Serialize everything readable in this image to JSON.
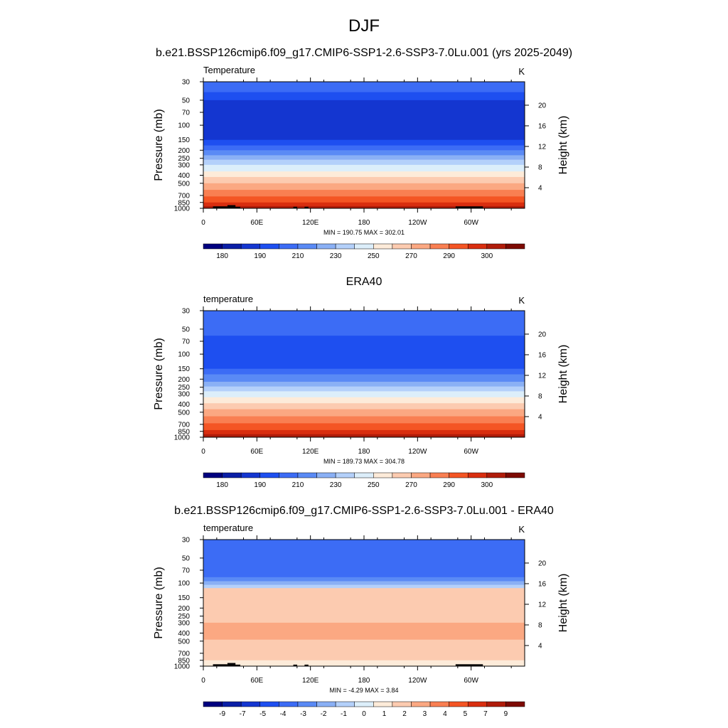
{
  "figure": {
    "title": "DJF"
  },
  "colors": {
    "temperature_palette": [
      "#00007f",
      "#0a1fa6",
      "#1436d0",
      "#1e4ff0",
      "#3c6cf5",
      "#5a8af5",
      "#8ab0f5",
      "#b4d0fa",
      "#dceefa",
      "#fdebd9",
      "#fccbb0",
      "#fba882",
      "#f97f52",
      "#f45524",
      "#d92e0f",
      "#b01c0a",
      "#7d0a03"
    ],
    "difference_palette": [
      "#00007f",
      "#0a1fa6",
      "#1436d0",
      "#1e4ff0",
      "#3c6cf5",
      "#5a8af5",
      "#8ab0f5",
      "#b4d0fa",
      "#dceefa",
      "#fdebd9",
      "#fccbb0",
      "#fba882",
      "#f97f52",
      "#f45524",
      "#d92e0f",
      "#b01c0a",
      "#7d0a03"
    ],
    "topography": "#000000"
  },
  "chart_data": [
    {
      "type": "heatmap",
      "title": "b.e21.BSSP126cmip6.f09_g17.CMIP6-SSP1-2.6-SSP3-7.0Lu.001 (yrs 2025-2049)",
      "left_label": "Temperature",
      "units": "K",
      "ylabel": "Pressure (mb)",
      "ylabel_right": "Height (km)",
      "x_ticks": [
        "0",
        "60E",
        "120E",
        "180",
        "120W",
        "60W"
      ],
      "y_ticks": [
        "30",
        "50",
        "70",
        "100",
        "150",
        "200",
        "250",
        "300",
        "400",
        "500",
        "700",
        "850",
        "1000"
      ],
      "y_ticks_right": [
        "4",
        "8",
        "12",
        "16",
        "20"
      ],
      "stats": "MIN = 190.75  MAX = 302.01",
      "colorbar_labels": [
        "180",
        "190",
        "210",
        "230",
        "250",
        "270",
        "290",
        "300"
      ],
      "levels": [
        {
          "p": 30,
          "bin": 4
        },
        {
          "p": 40,
          "bin": 3
        },
        {
          "p": 50,
          "bin": 2
        },
        {
          "p": 150,
          "bin": 3
        },
        {
          "p": 175,
          "bin": 4
        },
        {
          "p": 200,
          "bin": 5
        },
        {
          "p": 230,
          "bin": 6
        },
        {
          "p": 260,
          "bin": 7
        },
        {
          "p": 300,
          "bin": 8
        },
        {
          "p": 360,
          "bin": 9
        },
        {
          "p": 420,
          "bin": 10
        },
        {
          "p": 500,
          "bin": 11
        },
        {
          "p": 600,
          "bin": 12
        },
        {
          "p": 720,
          "bin": 13
        },
        {
          "p": 850,
          "bin": 14
        },
        {
          "p": 940,
          "bin": 15
        },
        {
          "p": 1000,
          "bin": 15
        }
      ],
      "topography": true
    },
    {
      "type": "heatmap",
      "title": "ERA40",
      "left_label": "temperature",
      "units": "K",
      "ylabel": "Pressure (mb)",
      "ylabel_right": "Height (km)",
      "x_ticks": [
        "0",
        "60E",
        "120E",
        "180",
        "120W",
        "60W"
      ],
      "y_ticks": [
        "30",
        "50",
        "70",
        "100",
        "150",
        "200",
        "250",
        "300",
        "400",
        "500",
        "700",
        "850",
        "1000"
      ],
      "y_ticks_right": [
        "4",
        "8",
        "12",
        "16",
        "20"
      ],
      "stats": "MIN = 189.73  MAX = 304.78",
      "colorbar_labels": [
        "180",
        "190",
        "210",
        "230",
        "250",
        "270",
        "290",
        "300"
      ],
      "levels": [
        {
          "p": 30,
          "bin": 4
        },
        {
          "p": 60,
          "bin": 3
        },
        {
          "p": 150,
          "bin": 4
        },
        {
          "p": 175,
          "bin": 5
        },
        {
          "p": 215,
          "bin": 6
        },
        {
          "p": 245,
          "bin": 7
        },
        {
          "p": 280,
          "bin": 8
        },
        {
          "p": 330,
          "bin": 9
        },
        {
          "p": 390,
          "bin": 10
        },
        {
          "p": 460,
          "bin": 11
        },
        {
          "p": 560,
          "bin": 12
        },
        {
          "p": 680,
          "bin": 13
        },
        {
          "p": 820,
          "bin": 14
        },
        {
          "p": 920,
          "bin": 15
        },
        {
          "p": 1000,
          "bin": 15
        }
      ],
      "topography": false
    },
    {
      "type": "heatmap",
      "title": "b.e21.BSSP126cmip6.f09_g17.CMIP6-SSP1-2.6-SSP3-7.0Lu.001 - ERA40",
      "left_label": "temperature",
      "units": "K",
      "ylabel": "Pressure (mb)",
      "ylabel_right": "Height (km)",
      "x_ticks": [
        "0",
        "60E",
        "120E",
        "180",
        "120W",
        "60W"
      ],
      "y_ticks": [
        "30",
        "50",
        "70",
        "100",
        "150",
        "200",
        "250",
        "300",
        "400",
        "500",
        "700",
        "850",
        "1000"
      ],
      "y_ticks_right": [
        "4",
        "8",
        "12",
        "16",
        "20"
      ],
      "stats": "MIN =  -4.29  MAX =   3.84",
      "colorbar_labels": [
        "-9",
        "-7",
        "-5",
        "-4",
        "-3",
        "-2",
        "-1",
        "0",
        "1",
        "2",
        "3",
        "4",
        "5",
        "7",
        "9"
      ],
      "levels": [
        {
          "p": 30,
          "bin": 4
        },
        {
          "p": 85,
          "bin": 5
        },
        {
          "p": 95,
          "bin": 6
        },
        {
          "p": 105,
          "bin": 7
        },
        {
          "p": 115,
          "bin": 10
        },
        {
          "p": 300,
          "bin": 11
        },
        {
          "p": 480,
          "bin": 10
        },
        {
          "p": 720,
          "bin": 10
        },
        {
          "p": 850,
          "bin": 9
        },
        {
          "p": 1000,
          "bin": 10
        }
      ],
      "topography": true
    }
  ]
}
